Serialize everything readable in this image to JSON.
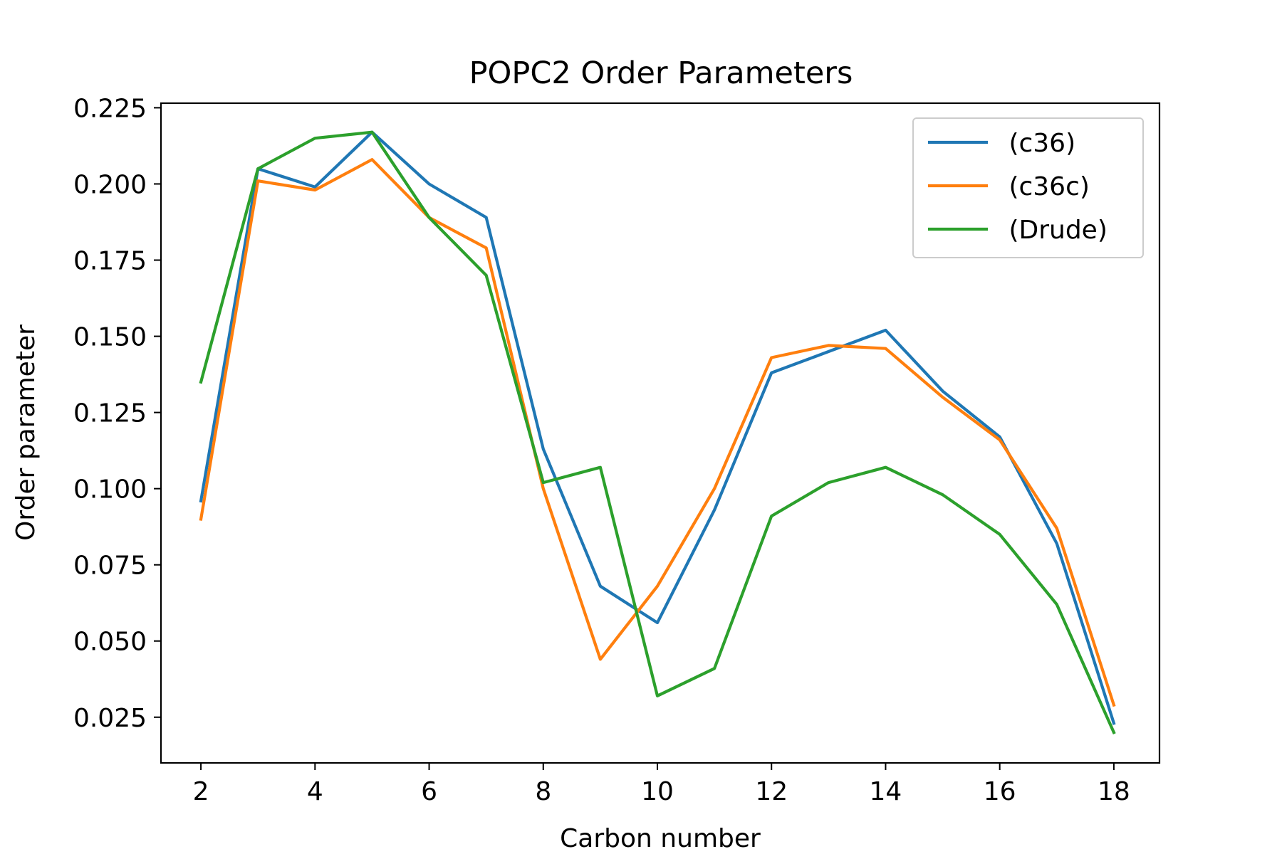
{
  "chart_data": {
    "type": "line",
    "title": "POPC2 Order Parameters",
    "xlabel": "Carbon number",
    "ylabel": "Order parameter",
    "xlim": [
      1.3,
      18.8
    ],
    "ylim": [
      0.01,
      0.2265
    ],
    "xticks": [
      2,
      4,
      6,
      8,
      10,
      12,
      14,
      16,
      18
    ],
    "xtick_labels": [
      "2",
      "4",
      "6",
      "8",
      "10",
      "12",
      "14",
      "16",
      "18"
    ],
    "yticks": [
      0.025,
      0.05,
      0.075,
      0.1,
      0.125,
      0.15,
      0.175,
      0.2,
      0.225
    ],
    "ytick_labels": [
      "0.025",
      "0.050",
      "0.075",
      "0.100",
      "0.125",
      "0.150",
      "0.175",
      "0.200",
      "0.225"
    ],
    "grid": false,
    "legend_position": "top-right",
    "x": [
      2,
      3,
      4,
      5,
      6,
      7,
      8,
      9,
      10,
      11,
      12,
      13,
      14,
      15,
      16,
      17,
      18
    ],
    "series": [
      {
        "name": " (c36)",
        "color": "#1f77b4",
        "values": [
          0.096,
          0.205,
          0.199,
          0.217,
          0.2,
          0.189,
          0.113,
          0.068,
          0.056,
          0.093,
          0.138,
          0.145,
          0.152,
          0.132,
          0.117,
          0.082,
          0.023
        ]
      },
      {
        "name": " (c36c)",
        "color": "#ff7f0e",
        "values": [
          0.09,
          0.201,
          0.198,
          0.208,
          0.189,
          0.179,
          0.1,
          0.044,
          0.068,
          0.1,
          0.143,
          0.147,
          0.146,
          0.13,
          0.116,
          0.087,
          0.029
        ]
      },
      {
        "name": " (Drude)",
        "color": "#2ca02c",
        "values": [
          0.135,
          0.205,
          0.215,
          0.217,
          0.189,
          0.17,
          0.102,
          0.107,
          0.032,
          0.041,
          0.091,
          0.102,
          0.107,
          0.098,
          0.085,
          0.062,
          0.02
        ]
      }
    ]
  }
}
